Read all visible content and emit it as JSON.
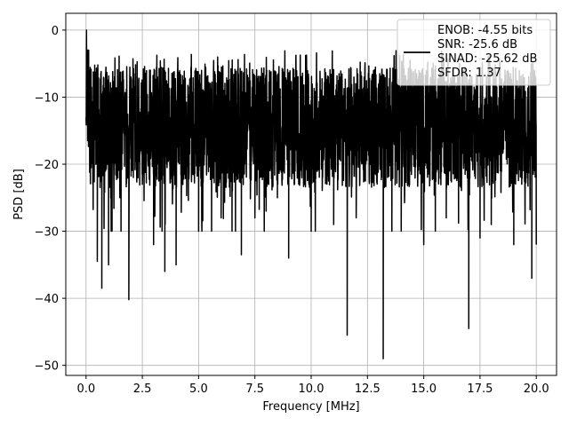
{
  "chart_data": {
    "type": "line",
    "xlabel": "Frequency [MHz]",
    "ylabel": "PSD [dB]",
    "xlim": [
      -0.9,
      20.9
    ],
    "ylim": [
      -51.5,
      2.5
    ],
    "xticks": [
      0.0,
      2.5,
      5.0,
      7.5,
      10.0,
      12.5,
      15.0,
      17.5,
      20.0
    ],
    "xtick_labels": [
      "0.0",
      "2.5",
      "5.0",
      "7.5",
      "10.0",
      "12.5",
      "15.0",
      "17.5",
      "20.0"
    ],
    "yticks": [
      0,
      -10,
      -20,
      -30,
      -40,
      -50
    ],
    "ytick_labels": [
      "0",
      "−10",
      "−20",
      "−30",
      "−40",
      "−50"
    ],
    "grid": true,
    "legend_position": "top-right",
    "series": [
      {
        "name": "ENOB: -4.55 bits\nSNR: -25.6 dB\nSINAD: -25.62 dB\nSFDR: 1.37",
        "color": "#000000",
        "x": [
          0.0,
          0.02,
          0.05,
          0.1,
          0.15,
          0.2,
          0.3,
          0.5,
          0.7,
          1.0,
          1.5,
          1.9,
          2.0,
          2.5,
          3.0,
          3.5,
          4.0,
          5.0,
          6.0,
          6.5,
          6.9,
          7.5,
          8.0,
          8.5,
          9.0,
          10.0,
          11.0,
          11.6,
          12.0,
          13.2,
          14.0,
          15.0,
          16.0,
          17.0,
          17.5,
          18.0,
          19.0,
          19.8,
          20.0
        ],
        "y": [
          -13.0,
          0.0,
          -4.0,
          -3.5,
          -6.0,
          -18.0,
          -23.0,
          -34.5,
          -38.5,
          -35.0,
          -25.0,
          -40.2,
          -15.0,
          -23.0,
          -32.0,
          -36.0,
          -35.0,
          -30.0,
          -28.0,
          -24.0,
          -33.5,
          -28.0,
          -27.0,
          -25.0,
          -34.0,
          -30.0,
          -29.0,
          -45.5,
          -28.0,
          -49.0,
          -30.0,
          -32.0,
          -28.0,
          -44.5,
          -31.0,
          -29.0,
          -32.0,
          -37.0,
          -32.0
        ]
      }
    ]
  }
}
